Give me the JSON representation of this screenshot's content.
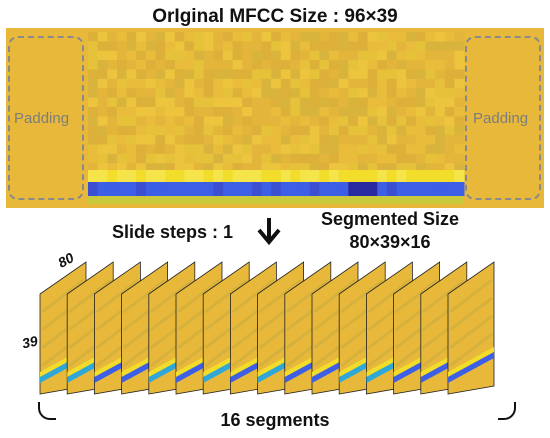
{
  "title": "OrIginal MFCC Size : 96×39",
  "padding_left": "Padding",
  "padding_right": "Padding",
  "slide_steps": "Slide steps : 1",
  "segmented_title": "Segmented Size",
  "segmented_dims": "80×39×16",
  "dim_width": "80",
  "dim_height": "39",
  "segments_label": "16 segments",
  "segment_count": 16,
  "colors": {
    "base": "#e8b83a",
    "yellow": "#f2dd2a",
    "light_yellow": "#f5e44a",
    "green_yellow": "#c9c93c",
    "blue": "#3d5fe6",
    "dark_blue": "#2a2aa0",
    "cyan": "#2fa7d8",
    "padding_border": "#8a8a8a"
  }
}
